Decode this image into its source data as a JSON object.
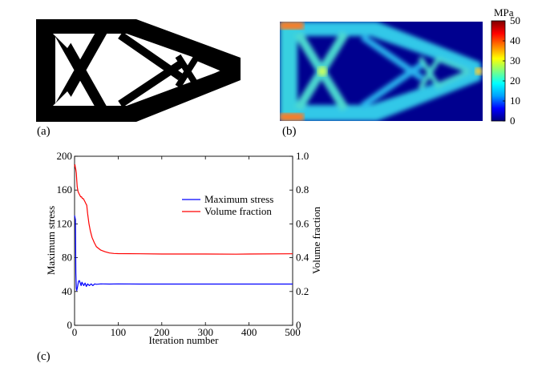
{
  "panels": {
    "a": {
      "label": "(a)"
    },
    "b": {
      "label": "(b)"
    },
    "c": {
      "label": "(c)"
    }
  },
  "colorbar": {
    "unit": "MPa",
    "ticks": [
      "50",
      "40",
      "30",
      "20",
      "10",
      "0"
    ],
    "range": [
      0,
      50
    ],
    "colors": [
      "#00007f",
      "#0000ff",
      "#00a0ff",
      "#00ffff",
      "#7fff7f",
      "#ffff00",
      "#ff8000",
      "#ff0000",
      "#7f0000"
    ]
  },
  "chart_data": {
    "type": "line",
    "xlabel": "Iteration number",
    "ylabel_left": "Maximum stress",
    "ylabel_right": "Volume fraction",
    "xlim": [
      0,
      500
    ],
    "ylim_left": [
      0,
      200
    ],
    "ylim_right": [
      0,
      1.0
    ],
    "xticks": [
      "0",
      "100",
      "200",
      "300",
      "400",
      "500"
    ],
    "yticks_left": [
      "0",
      "40",
      "80",
      "120",
      "160",
      "200"
    ],
    "yticks_right": [
      "0",
      "0.2",
      "0.4",
      "0.6",
      "0.8",
      "1.0"
    ],
    "legend_position": "upper-right",
    "series": [
      {
        "name": "Maximum stress",
        "axis": "left",
        "color": "#0000ff",
        "x": [
          0,
          2,
          3,
          4,
          5,
          7,
          9,
          11,
          13,
          15,
          17,
          19,
          21,
          24,
          27,
          30,
          34,
          38,
          42,
          46,
          50,
          60,
          80,
          100,
          150,
          200,
          300,
          400,
          500
        ],
        "y": [
          130,
          125,
          62,
          44,
          41,
          46,
          52,
          53,
          50,
          47,
          51,
          49,
          47,
          50,
          46,
          49,
          47,
          49,
          47,
          49,
          48.5,
          49,
          48.8,
          49,
          48.8,
          48.8,
          48.8,
          48.8,
          48.8
        ]
      },
      {
        "name": "Volume fraction",
        "axis": "right",
        "color": "#ff0000",
        "x": [
          0,
          1,
          2,
          3,
          4,
          5,
          6,
          8,
          10,
          12,
          14,
          16,
          18,
          20,
          22,
          24,
          26,
          28,
          30,
          33,
          36,
          40,
          45,
          50,
          55,
          60,
          70,
          80,
          90,
          100,
          150,
          200,
          300,
          370,
          400,
          500
        ],
        "y": [
          0.94,
          0.95,
          0.93,
          0.92,
          0.9,
          0.86,
          0.82,
          0.79,
          0.78,
          0.77,
          0.76,
          0.76,
          0.75,
          0.75,
          0.74,
          0.73,
          0.72,
          0.71,
          0.66,
          0.6,
          0.56,
          0.52,
          0.49,
          0.465,
          0.455,
          0.445,
          0.435,
          0.428,
          0.425,
          0.424,
          0.423,
          0.422,
          0.422,
          0.421,
          0.422,
          0.423
        ]
      }
    ]
  }
}
